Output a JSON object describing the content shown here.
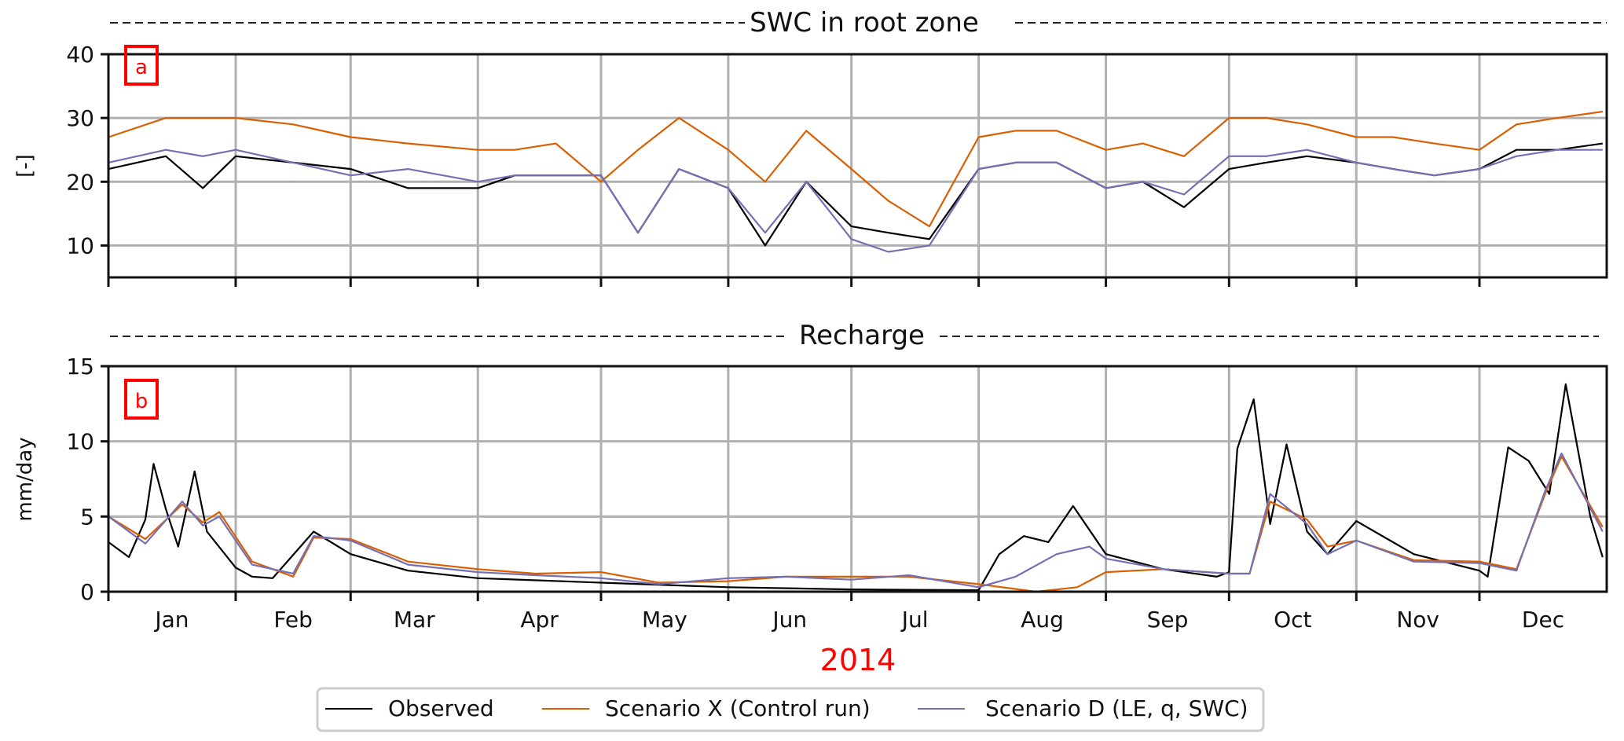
{
  "colors": {
    "observed": "#000000",
    "scenario_x": "#d95f02",
    "scenario_d": "#7570b3",
    "panel_label": "#ff0000",
    "year_label": "#ff0000",
    "grid": "#b0b0b0"
  },
  "xaxis": {
    "year_label": "2014",
    "month_ticks": [
      "Jan",
      "Feb",
      "Mar",
      "Apr",
      "May",
      "Jun",
      "Jul",
      "Aug",
      "Sep",
      "Oct",
      "Nov",
      "Dec"
    ],
    "range_days": [
      0,
      365
    ]
  },
  "legend": {
    "placement": "bottom-center",
    "items": [
      "Observed",
      "Scenario X (Control run)",
      "Scenario D (LE, q, SWC)"
    ]
  },
  "chart_data": [
    {
      "type": "line",
      "panel_label": "a",
      "title": "SWC in root zone",
      "ylabel": "[-]",
      "ylim": [
        5,
        40
      ],
      "yticks": [
        "10",
        "20",
        "30",
        "40"
      ],
      "grid": true,
      "series": [
        {
          "name": "Observed",
          "x": [
            "2014-01-01",
            "2014-01-15",
            "2014-01-24",
            "2014-02-01",
            "2014-02-15",
            "2014-03-01",
            "2014-03-15",
            "2014-04-01",
            "2014-04-10",
            "2014-04-20",
            "2014-05-01",
            "2014-05-10",
            "2014-05-20",
            "2014-06-01",
            "2014-06-10",
            "2014-06-20",
            "2014-07-01",
            "2014-07-10",
            "2014-07-20",
            "2014-08-01",
            "2014-08-10",
            "2014-08-20",
            "2014-09-01",
            "2014-09-10",
            "2014-09-20",
            "2014-10-01",
            "2014-10-10",
            "2014-10-20",
            "2014-11-01",
            "2014-11-10",
            "2014-11-20",
            "2014-12-01",
            "2014-12-10",
            "2014-12-20",
            "2014-12-31"
          ],
          "values": [
            22,
            24,
            19,
            24,
            23,
            22,
            19,
            19,
            21,
            21,
            21,
            12,
            22,
            19,
            10,
            20,
            13,
            12,
            11,
            22,
            23,
            23,
            19,
            20,
            16,
            22,
            23,
            24,
            23,
            22,
            21,
            22,
            25,
            25,
            26
          ]
        },
        {
          "name": "Scenario X (Control run)",
          "x": [
            "2014-01-01",
            "2014-01-15",
            "2014-01-24",
            "2014-02-01",
            "2014-02-15",
            "2014-03-01",
            "2014-03-15",
            "2014-04-01",
            "2014-04-10",
            "2014-04-20",
            "2014-05-01",
            "2014-05-10",
            "2014-05-20",
            "2014-06-01",
            "2014-06-10",
            "2014-06-20",
            "2014-07-01",
            "2014-07-10",
            "2014-07-20",
            "2014-08-01",
            "2014-08-10",
            "2014-08-20",
            "2014-09-01",
            "2014-09-10",
            "2014-09-20",
            "2014-10-01",
            "2014-10-10",
            "2014-10-20",
            "2014-11-01",
            "2014-11-10",
            "2014-11-20",
            "2014-12-01",
            "2014-12-10",
            "2014-12-20",
            "2014-12-31"
          ],
          "values": [
            27,
            30,
            30,
            30,
            29,
            27,
            26,
            25,
            25,
            26,
            20,
            25,
            30,
            25,
            20,
            28,
            22,
            17,
            13,
            27,
            28,
            28,
            25,
            26,
            24,
            30,
            30,
            29,
            27,
            27,
            26,
            25,
            29,
            30,
            31
          ]
        },
        {
          "name": "Scenario D (LE, q, SWC)",
          "x": [
            "2014-01-01",
            "2014-01-15",
            "2014-01-24",
            "2014-02-01",
            "2014-02-15",
            "2014-03-01",
            "2014-03-15",
            "2014-04-01",
            "2014-04-10",
            "2014-04-20",
            "2014-05-01",
            "2014-05-10",
            "2014-05-20",
            "2014-06-01",
            "2014-06-10",
            "2014-06-20",
            "2014-07-01",
            "2014-07-10",
            "2014-07-20",
            "2014-08-01",
            "2014-08-10",
            "2014-08-20",
            "2014-09-01",
            "2014-09-10",
            "2014-09-20",
            "2014-10-01",
            "2014-10-10",
            "2014-10-20",
            "2014-11-01",
            "2014-11-10",
            "2014-11-20",
            "2014-12-01",
            "2014-12-10",
            "2014-12-20",
            "2014-12-31"
          ],
          "values": [
            23,
            25,
            24,
            25,
            23,
            21,
            22,
            20,
            21,
            21,
            21,
            12,
            22,
            19,
            12,
            20,
            11,
            9,
            10,
            22,
            23,
            23,
            19,
            20,
            18,
            24,
            24,
            25,
            23,
            22,
            21,
            22,
            24,
            25,
            25
          ]
        }
      ]
    },
    {
      "type": "line",
      "panel_label": "b",
      "title": "Recharge",
      "ylabel": "mm/day",
      "ylim": [
        0,
        15
      ],
      "yticks": [
        "0",
        "5",
        "10",
        "15"
      ],
      "grid": true,
      "series": [
        {
          "name": "Observed",
          "x": [
            "2014-01-01",
            "2014-01-06",
            "2014-01-10",
            "2014-01-12",
            "2014-01-15",
            "2014-01-18",
            "2014-01-22",
            "2014-01-25",
            "2014-02-01",
            "2014-02-05",
            "2014-02-10",
            "2014-02-20",
            "2014-03-01",
            "2014-03-15",
            "2014-04-01",
            "2014-05-01",
            "2014-06-01",
            "2014-07-01",
            "2014-08-01",
            "2014-08-06",
            "2014-08-12",
            "2014-08-18",
            "2014-08-24",
            "2014-09-01",
            "2014-09-15",
            "2014-09-28",
            "2014-10-01",
            "2014-10-03",
            "2014-10-07",
            "2014-10-11",
            "2014-10-15",
            "2014-10-20",
            "2014-10-25",
            "2014-11-01",
            "2014-11-15",
            "2014-12-01",
            "2014-12-03",
            "2014-12-08",
            "2014-12-13",
            "2014-12-18",
            "2014-12-22",
            "2014-12-28",
            "2014-12-31"
          ],
          "values": [
            3.3,
            2.3,
            4.8,
            8.5,
            5.5,
            3.0,
            8.0,
            4.0,
            1.6,
            1.0,
            0.9,
            4.0,
            2.5,
            1.4,
            0.9,
            0.6,
            0.3,
            0.15,
            0.1,
            2.5,
            3.7,
            3.3,
            5.7,
            2.5,
            1.5,
            1.0,
            1.3,
            9.5,
            12.8,
            4.5,
            9.8,
            4.0,
            2.5,
            4.7,
            2.5,
            1.4,
            1.0,
            9.6,
            8.7,
            6.5,
            13.8,
            5.0,
            2.3
          ]
        },
        {
          "name": "Scenario X (Control run)",
          "x": [
            "2014-01-01",
            "2014-01-10",
            "2014-01-19",
            "2014-01-24",
            "2014-01-28",
            "2014-02-05",
            "2014-02-15",
            "2014-02-20",
            "2014-03-01",
            "2014-03-15",
            "2014-04-01",
            "2014-04-15",
            "2014-05-01",
            "2014-05-15",
            "2014-06-01",
            "2014-06-15",
            "2014-07-01",
            "2014-07-15",
            "2014-08-01",
            "2014-08-15",
            "2014-08-25",
            "2014-09-01",
            "2014-09-15",
            "2014-10-01",
            "2014-10-06",
            "2014-10-11",
            "2014-10-20",
            "2014-10-25",
            "2014-11-01",
            "2014-11-15",
            "2014-12-01",
            "2014-12-10",
            "2014-12-17",
            "2014-12-21",
            "2014-12-31"
          ],
          "values": [
            5.0,
            3.5,
            5.8,
            4.6,
            5.3,
            2.0,
            1.0,
            3.6,
            3.5,
            2.0,
            1.5,
            1.2,
            1.3,
            0.6,
            0.7,
            1.0,
            1.0,
            1.0,
            0.5,
            0.0,
            0.3,
            1.3,
            1.5,
            1.2,
            1.2,
            6.0,
            4.8,
            3.0,
            3.4,
            2.1,
            2.0,
            1.5,
            6.5,
            9.0,
            4.3
          ]
        },
        {
          "name": "Scenario D (LE, q, SWC)",
          "x": [
            "2014-01-01",
            "2014-01-10",
            "2014-01-19",
            "2014-01-24",
            "2014-01-28",
            "2014-02-05",
            "2014-02-15",
            "2014-02-20",
            "2014-03-01",
            "2014-03-15",
            "2014-04-01",
            "2014-04-15",
            "2014-05-01",
            "2014-05-15",
            "2014-06-01",
            "2014-06-15",
            "2014-07-01",
            "2014-07-15",
            "2014-08-01",
            "2014-08-10",
            "2014-08-20",
            "2014-08-28",
            "2014-09-01",
            "2014-09-15",
            "2014-10-01",
            "2014-10-06",
            "2014-10-11",
            "2014-10-20",
            "2014-10-25",
            "2014-11-01",
            "2014-11-15",
            "2014-12-01",
            "2014-12-10",
            "2014-12-17",
            "2014-12-21",
            "2014-12-31"
          ],
          "values": [
            5.0,
            3.2,
            6.0,
            4.4,
            5.0,
            1.8,
            1.2,
            3.7,
            3.4,
            1.8,
            1.3,
            1.1,
            0.9,
            0.5,
            0.9,
            1.0,
            0.8,
            1.1,
            0.3,
            1.0,
            2.5,
            3.0,
            2.2,
            1.5,
            1.2,
            1.2,
            6.5,
            4.5,
            2.5,
            3.4,
            2.0,
            1.9,
            1.4,
            6.7,
            9.2,
            4.0
          ]
        }
      ]
    }
  ]
}
